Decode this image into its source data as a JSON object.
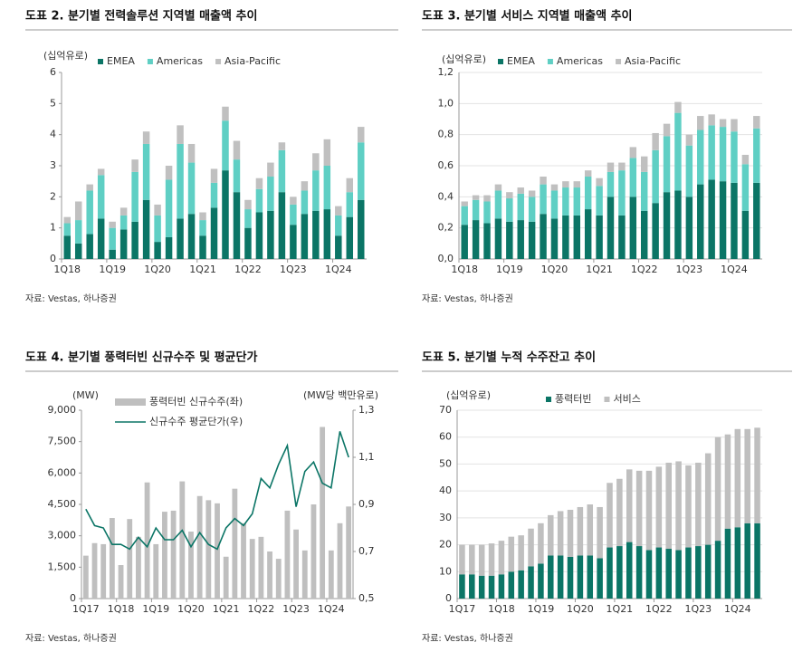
{
  "chart_data": [
    {
      "type": "bar",
      "stacked": true,
      "title": "도표 2. 분기별 전력솔루션 지역별 매출액 추이",
      "unit_label": "(십억유로)",
      "source": "자료: Vestas, 하나증권",
      "categories": [
        "1Q18",
        null,
        null,
        null,
        "1Q19",
        null,
        null,
        null,
        "1Q20",
        null,
        null,
        null,
        "1Q21",
        null,
        null,
        null,
        "1Q22",
        null,
        null,
        null,
        "1Q23",
        null,
        null,
        null,
        "1Q24",
        null,
        null
      ],
      "series": [
        {
          "name": "EMEA",
          "color": "#0b7566",
          "values": [
            0.75,
            0.5,
            0.8,
            1.3,
            0.3,
            0.95,
            1.2,
            1.9,
            0.55,
            0.7,
            1.3,
            1.45,
            0.75,
            1.65,
            2.85,
            2.15,
            1.0,
            1.5,
            1.55,
            2.15,
            1.1,
            1.45,
            1.55,
            1.6,
            0.75,
            1.35,
            1.9
          ]
        },
        {
          "name": "Americas",
          "color": "#5fcfc4",
          "values": [
            0.4,
            0.75,
            1.4,
            1.4,
            0.7,
            0.45,
            1.6,
            1.8,
            0.85,
            1.85,
            2.4,
            1.65,
            0.5,
            0.8,
            1.6,
            1.05,
            0.6,
            0.75,
            1.1,
            1.35,
            0.65,
            0.75,
            1.3,
            1.4,
            0.65,
            0.8,
            1.85
          ]
        },
        {
          "name": "Asia-Pacific",
          "color": "#c0c0c0",
          "values": [
            0.2,
            0.6,
            0.2,
            0.2,
            0.2,
            0.25,
            0.4,
            0.4,
            0.35,
            0.45,
            0.6,
            0.6,
            0.25,
            0.45,
            0.45,
            0.6,
            0.3,
            0.35,
            0.45,
            0.25,
            0.25,
            0.3,
            0.55,
            0.85,
            0.3,
            0.45,
            0.5
          ]
        }
      ],
      "ylim": [
        0,
        6
      ],
      "yticks": [
        0,
        1,
        2,
        3,
        4,
        5,
        6
      ],
      "grid": false,
      "legend": "top"
    },
    {
      "type": "bar",
      "stacked": true,
      "title": "도표 3. 분기별 서비스 지역별 매출액 추이",
      "unit_label": "(십억유로)",
      "source": "자료: Vestas, 하나증권",
      "categories": [
        "1Q18",
        null,
        null,
        null,
        "1Q19",
        null,
        null,
        null,
        "1Q20",
        null,
        null,
        null,
        "1Q21",
        null,
        null,
        null,
        "1Q22",
        null,
        null,
        null,
        "1Q23",
        null,
        null,
        null,
        "1Q24",
        null,
        null
      ],
      "series": [
        {
          "name": "EMEA",
          "color": "#0b7566",
          "values": [
            0.22,
            0.25,
            0.23,
            0.26,
            0.24,
            0.25,
            0.24,
            0.29,
            0.26,
            0.28,
            0.28,
            0.32,
            0.28,
            0.4,
            0.28,
            0.4,
            0.31,
            0.36,
            0.43,
            0.44,
            0.4,
            0.48,
            0.51,
            0.5,
            0.49,
            0.31,
            0.49
          ]
        },
        {
          "name": "Americas",
          "color": "#5fcfc4",
          "values": [
            0.12,
            0.13,
            0.14,
            0.18,
            0.15,
            0.17,
            0.16,
            0.19,
            0.18,
            0.18,
            0.18,
            0.21,
            0.19,
            0.16,
            0.29,
            0.25,
            0.25,
            0.34,
            0.36,
            0.5,
            0.33,
            0.35,
            0.35,
            0.35,
            0.33,
            0.3,
            0.35
          ]
        },
        {
          "name": "Asia-Pacific",
          "color": "#c0c0c0",
          "values": [
            0.03,
            0.03,
            0.04,
            0.04,
            0.04,
            0.04,
            0.04,
            0.05,
            0.04,
            0.04,
            0.04,
            0.04,
            0.05,
            0.06,
            0.05,
            0.07,
            0.1,
            0.11,
            0.08,
            0.07,
            0.07,
            0.09,
            0.07,
            0.05,
            0.08,
            0.06,
            0.08
          ]
        }
      ],
      "ylim": [
        0,
        1.2
      ],
      "yticks": [
        {
          "value": 0,
          "label": "0,0"
        },
        {
          "value": 0.2,
          "label": "0,2"
        },
        {
          "value": 0.4,
          "label": "0,4"
        },
        {
          "value": 0.6,
          "label": "0,6"
        },
        {
          "value": 0.8,
          "label": "0,8"
        },
        {
          "value": 1.0,
          "label": "1,0"
        },
        {
          "value": 1.2,
          "label": "1,2"
        }
      ],
      "grid": true,
      "legend": "top"
    },
    {
      "type": "combo",
      "title": "도표 4. 분기별 풍력터빈 신규수주 및 평균단가",
      "unit_label": "(MW)",
      "y2_unit_label": "(MW당 백만유로)",
      "source": "자료: Vestas, 하나증권",
      "categories": [
        "1Q17",
        null,
        null,
        null,
        "1Q18",
        null,
        null,
        null,
        "1Q19",
        null,
        null,
        null,
        "1Q20",
        null,
        null,
        null,
        "1Q21",
        null,
        null,
        null,
        "1Q22",
        null,
        null,
        null,
        "1Q23",
        null,
        null,
        null,
        "1Q24",
        null,
        null
      ],
      "series": [
        {
          "name": "풍력터빈 신규수주(좌)",
          "type": "bar",
          "color": "#bfbfbf",
          "values": [
            2050,
            2650,
            2600,
            3850,
            1600,
            3800,
            2950,
            5550,
            2600,
            4150,
            4200,
            5600,
            3200,
            4900,
            4700,
            4550,
            2000,
            5250,
            3600,
            2850,
            2950,
            2250,
            1900,
            4200,
            3300,
            2300,
            4500,
            8200,
            2300,
            3600,
            4400
          ]
        },
        {
          "name": "신규수주 평균단가(우)",
          "type": "line",
          "axis": "y2",
          "color": "#0b7566",
          "values": [
            0.88,
            0.81,
            0.8,
            0.73,
            0.73,
            0.71,
            0.76,
            0.72,
            0.8,
            0.75,
            0.75,
            0.79,
            0.72,
            0.78,
            0.73,
            0.71,
            0.8,
            0.84,
            0.81,
            0.86,
            1.01,
            0.97,
            1.07,
            1.15,
            0.89,
            1.04,
            1.08,
            0.99,
            0.97,
            1.21,
            1.1
          ]
        }
      ],
      "ylim": [
        0,
        9000
      ],
      "yticks": [
        0,
        {
          "value": 1500,
          "label": "1,500"
        },
        {
          "value": 3000,
          "label": "3,000"
        },
        {
          "value": 4500,
          "label": "4,500"
        },
        {
          "value": 6000,
          "label": "6,000"
        },
        {
          "value": 7500,
          "label": "7,500"
        },
        {
          "value": 9000,
          "label": "9,000"
        }
      ],
      "y2lim": [
        0.5,
        1.3
      ],
      "y2ticks": [
        {
          "value": 0.5,
          "label": "0,5"
        },
        {
          "value": 0.7,
          "label": "0,7"
        },
        {
          "value": 0.9,
          "label": "0,9"
        },
        {
          "value": 1.1,
          "label": "1,1"
        },
        {
          "value": 1.3,
          "label": "1,3"
        }
      ],
      "grid": false,
      "legend": "top"
    },
    {
      "type": "bar",
      "stacked": true,
      "title": "도표 5. 분기별 누적 수주잔고 추이",
      "unit_label": "(십억유로)",
      "source": "자료: Vestas, 하나증권",
      "categories": [
        "1Q17",
        null,
        null,
        null,
        "1Q18",
        null,
        null,
        null,
        "1Q19",
        null,
        null,
        null,
        "1Q20",
        null,
        null,
        null,
        "1Q21",
        null,
        null,
        null,
        "1Q22",
        null,
        null,
        null,
        "1Q23",
        null,
        null,
        null,
        "1Q24",
        null,
        null
      ],
      "series": [
        {
          "name": "풍력터빈",
          "color": "#0b7566",
          "values": [
            9,
            9,
            8.5,
            8.5,
            9,
            10,
            10.5,
            12,
            13,
            16,
            16,
            15.5,
            16,
            16,
            15,
            19,
            19.5,
            21,
            19.5,
            18,
            19,
            18.5,
            18,
            19,
            19.5,
            20,
            21.5,
            26,
            26.5,
            28,
            28
          ]
        },
        {
          "name": "서비스",
          "color": "#bfbfbf",
          "values": [
            11,
            11,
            11.5,
            12,
            12.5,
            13,
            13,
            14,
            15,
            15,
            16.5,
            17.5,
            18,
            19,
            19,
            24,
            25,
            27,
            28,
            29.5,
            30,
            32,
            33,
            30.5,
            31,
            34,
            38.5,
            35,
            36.5,
            35,
            35.5
          ]
        }
      ],
      "ylim": [
        0,
        70
      ],
      "yticks": [
        0,
        10,
        20,
        30,
        40,
        50,
        60,
        70
      ],
      "grid": true,
      "legend": "top"
    }
  ]
}
